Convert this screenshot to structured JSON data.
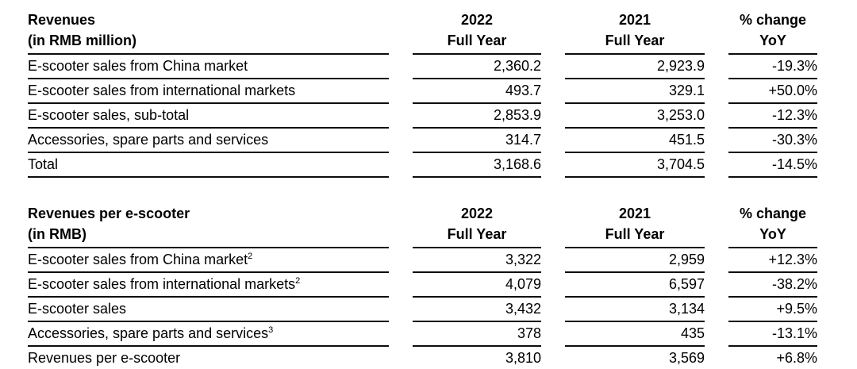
{
  "page": {
    "background": "#ffffff",
    "text_color": "#000000",
    "rule_color": "#0d0d0d"
  },
  "tables": [
    {
      "title_line1": "Revenues",
      "title_line2": "(in RMB million)",
      "col1": {
        "line1": "2022",
        "line2": "Full Year"
      },
      "col2": {
        "line1": "2021",
        "line2": "Full Year"
      },
      "col3": {
        "line1": "% change",
        "line2": "YoY"
      },
      "rows": [
        {
          "label": "E-scooter sales from China market",
          "sup": "",
          "y2022": "2,360.2",
          "y2021": "2,923.9",
          "yoy": "-19.3%"
        },
        {
          "label": "E-scooter sales from international markets",
          "sup": "",
          "y2022": "493.7",
          "y2021": "329.1",
          "yoy": "+50.0%"
        },
        {
          "label": "E-scooter sales, sub-total",
          "sup": "",
          "y2022": "2,853.9",
          "y2021": "3,253.0",
          "yoy": "-12.3%"
        },
        {
          "label": "Accessories, spare parts and services",
          "sup": "",
          "y2022": "314.7",
          "y2021": "451.5",
          "yoy": "-30.3%"
        },
        {
          "label": "Total",
          "sup": "",
          "y2022": "3,168.6",
          "y2021": "3,704.5",
          "yoy": "-14.5%"
        }
      ]
    },
    {
      "title_line1": "Revenues per e-scooter",
      "title_line2": "(in RMB)",
      "col1": {
        "line1": "2022",
        "line2": "Full Year"
      },
      "col2": {
        "line1": "2021",
        "line2": "Full Year"
      },
      "col3": {
        "line1": "% change",
        "line2": "YoY"
      },
      "rows": [
        {
          "label": "E-scooter sales from China market",
          "sup": "2",
          "y2022": "3,322",
          "y2021": "2,959",
          "yoy": "+12.3%"
        },
        {
          "label": "E-scooter sales from international markets",
          "sup": "2",
          "y2022": "4,079",
          "y2021": "6,597",
          "yoy": "-38.2%"
        },
        {
          "label": "E-scooter sales",
          "sup": "",
          "y2022": "3,432",
          "y2021": "3,134",
          "yoy": "+9.5%"
        },
        {
          "label": "Accessories, spare parts and services",
          "sup": "3",
          "y2022": "378",
          "y2021": "435",
          "yoy": "-13.1%"
        },
        {
          "label": "Revenues per e-scooter",
          "sup": "",
          "y2022": "3,810",
          "y2021": "3,569",
          "yoy": "+6.8%"
        }
      ]
    }
  ]
}
